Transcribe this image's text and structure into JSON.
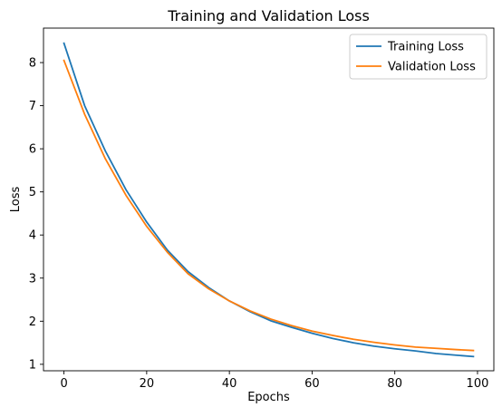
{
  "chart_data": {
    "type": "line",
    "title": "Training and Validation Loss",
    "xlabel": "Epochs",
    "ylabel": "Loss",
    "xlim": [
      -4.95,
      103.95
    ],
    "ylim": [
      0.85,
      8.8
    ],
    "xticks": [
      0,
      20,
      40,
      60,
      80,
      100
    ],
    "yticks": [
      1,
      2,
      3,
      4,
      5,
      6,
      7,
      8
    ],
    "grid": false,
    "legend_position": "upper right",
    "series": [
      {
        "name": "Training Loss",
        "color": "#1f77b4",
        "x": [
          0,
          5,
          10,
          15,
          20,
          25,
          30,
          35,
          40,
          45,
          50,
          55,
          60,
          65,
          70,
          75,
          80,
          85,
          90,
          95,
          99
        ],
        "y": [
          8.45,
          7.0,
          5.95,
          5.05,
          4.3,
          3.65,
          3.15,
          2.78,
          2.47,
          2.22,
          2.01,
          1.86,
          1.72,
          1.6,
          1.5,
          1.42,
          1.36,
          1.31,
          1.25,
          1.21,
          1.18
        ]
      },
      {
        "name": "Validation Loss",
        "color": "#ff7f0e",
        "x": [
          0,
          5,
          10,
          15,
          20,
          25,
          30,
          35,
          40,
          45,
          50,
          55,
          60,
          65,
          70,
          75,
          80,
          85,
          90,
          95,
          99
        ],
        "y": [
          8.05,
          6.8,
          5.77,
          4.92,
          4.2,
          3.6,
          3.1,
          2.75,
          2.47,
          2.24,
          2.05,
          1.9,
          1.77,
          1.67,
          1.58,
          1.51,
          1.45,
          1.4,
          1.37,
          1.34,
          1.32
        ]
      }
    ]
  }
}
